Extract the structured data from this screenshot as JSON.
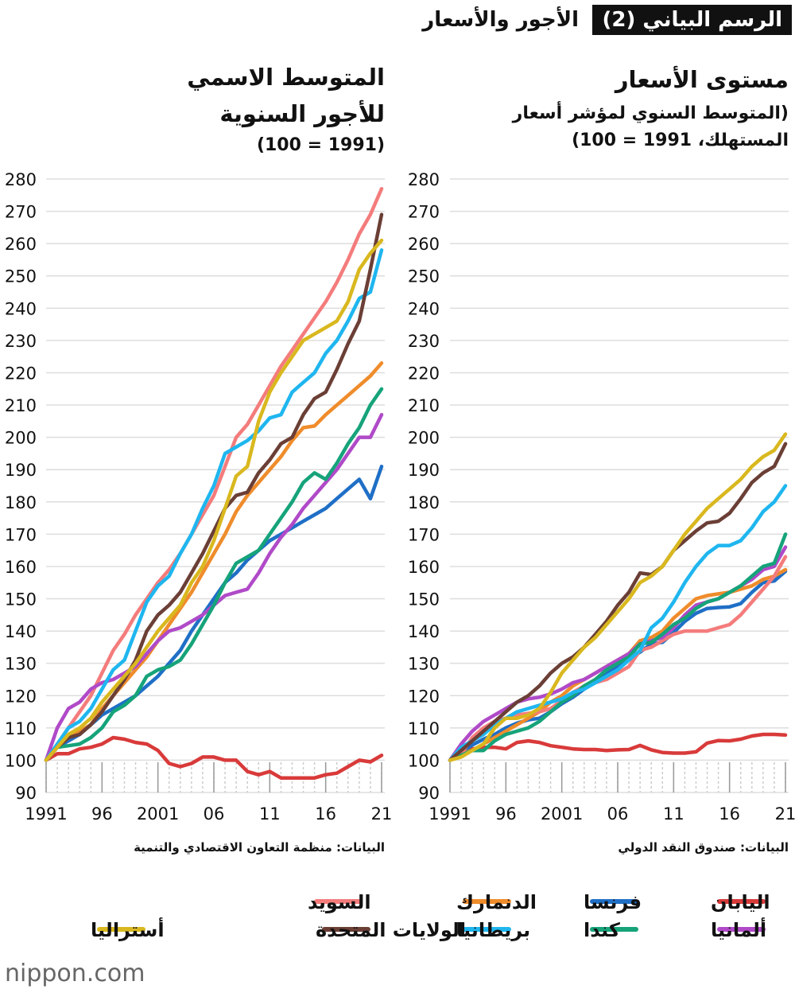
{
  "header": {
    "label": "الرسم البياني (2)",
    "title": "الأجور والأسعار"
  },
  "logo": "nippon.com",
  "chart_data": [
    {
      "type": "line",
      "title": "المتوسط الاسمي للأجور السنوية",
      "subtitle": "(1991 = 100)",
      "source": "البيانات: منظمة التعاون الاقتصادي والتنمية",
      "x": [
        1991,
        1992,
        1993,
        1994,
        1995,
        1996,
        1997,
        1998,
        1999,
        2000,
        2001,
        2002,
        2003,
        2004,
        2005,
        2006,
        2007,
        2008,
        2009,
        2010,
        2011,
        2012,
        2013,
        2014,
        2015,
        2016,
        2017,
        2018,
        2019,
        2020,
        2021
      ],
      "xlim": [
        1991,
        2021
      ],
      "xticks": [
        1991,
        {
          "value": 1996,
          "label": "96"
        },
        2001,
        {
          "value": 2006,
          "label": "06"
        },
        {
          "value": 2011,
          "label": "11"
        },
        {
          "value": 2016,
          "label": "16"
        },
        {
          "value": 2021,
          "label": "21"
        }
      ],
      "ylim": [
        90,
        280
      ],
      "yticks": [
        90,
        100,
        110,
        120,
        130,
        140,
        150,
        160,
        170,
        180,
        190,
        200,
        210,
        220,
        230,
        240,
        250,
        260,
        270,
        280
      ],
      "grid": true,
      "series": [
        {
          "name": "اليابان",
          "color": "#d93a3a",
          "values": [
            100,
            102,
            102,
            103.5,
            104,
            105,
            107,
            106.5,
            105.5,
            105,
            103,
            99,
            98,
            99,
            101,
            101,
            100,
            100,
            96.5,
            95.5,
            96.5,
            94.5,
            94.5,
            94.5,
            94.5,
            95.5,
            96,
            98,
            100,
            99.5,
            101.5
          ]
        },
        {
          "name": "فرنسا",
          "color": "#1f6fc6",
          "values": [
            100,
            104,
            106,
            108,
            111,
            114,
            116,
            118,
            120,
            123,
            126,
            130,
            134,
            140,
            145,
            150,
            155,
            158,
            162,
            165,
            168,
            170,
            172,
            174,
            176,
            178,
            181,
            184,
            187,
            181,
            191
          ]
        },
        {
          "name": "الدنمارك",
          "color": "#ef8c2b",
          "values": [
            100,
            104,
            107,
            109,
            111,
            116,
            120,
            124,
            128,
            132,
            137,
            142,
            147,
            152,
            158,
            164,
            170,
            177,
            182,
            186,
            190,
            194,
            199,
            203,
            203.5,
            207,
            210,
            213,
            216,
            219,
            223
          ]
        },
        {
          "name": "السويد",
          "color": "#f47c7c",
          "values": [
            100,
            105,
            110,
            115,
            120,
            127,
            134,
            139,
            145,
            150,
            155,
            159,
            164,
            170,
            176,
            182,
            191,
            200,
            204,
            210,
            216,
            222,
            227,
            232,
            237,
            242,
            248,
            255,
            263,
            269,
            277
          ]
        },
        {
          "name": "ألمانيا",
          "color": "#b04ac8",
          "values": [
            100,
            110,
            116,
            118,
            122,
            124,
            125,
            127,
            129,
            133,
            137,
            140,
            141,
            143,
            145,
            148,
            151,
            152,
            153,
            158,
            164,
            169,
            173,
            178,
            182,
            186,
            190,
            195,
            200,
            200,
            207
          ]
        },
        {
          "name": "كندا",
          "color": "#16a37a",
          "values": [
            100,
            104,
            104.5,
            105,
            107,
            110,
            115,
            117,
            120,
            126,
            128,
            129,
            131,
            136,
            142,
            148,
            155,
            161,
            163,
            165,
            170,
            175,
            180,
            186,
            189,
            187,
            192,
            198,
            203,
            210,
            215
          ]
        },
        {
          "name": "بريطانيا",
          "color": "#1fb6ef",
          "values": [
            100,
            105,
            110,
            112,
            116,
            122,
            128,
            131,
            140,
            149,
            154,
            157,
            164,
            170,
            178,
            185,
            195,
            197,
            199,
            202,
            206,
            207,
            214,
            217,
            220,
            226,
            230,
            236,
            243,
            245,
            258
          ]
        },
        {
          "name": "الولايات المتحدة",
          "color": "#6b3f36",
          "values": [
            100,
            104,
            107,
            108,
            111,
            115,
            120,
            125,
            131,
            140,
            145,
            148,
            152,
            158,
            164,
            171,
            178,
            182,
            183,
            189,
            193,
            198,
            200,
            207,
            212,
            214,
            221,
            229,
            236,
            252,
            269
          ]
        },
        {
          "name": "أستراليا",
          "color": "#d9b81f",
          "values": [
            100,
            104,
            108,
            110,
            113,
            118,
            122,
            126,
            130,
            135,
            140,
            144,
            148,
            155,
            160,
            168,
            178,
            188,
            191,
            205,
            214,
            220,
            225,
            230,
            232,
            234,
            236,
            242,
            252,
            257,
            261
          ]
        }
      ]
    },
    {
      "type": "line",
      "title": "مستوى الأسعار",
      "subtitle": "(المتوسط السنوي لمؤشر أسعار المستهلك، 1991 = 100)",
      "source": "البيانات: صندوق النقد الدولي",
      "x": [
        1991,
        1992,
        1993,
        1994,
        1995,
        1996,
        1997,
        1998,
        1999,
        2000,
        2001,
        2002,
        2003,
        2004,
        2005,
        2006,
        2007,
        2008,
        2009,
        2010,
        2011,
        2012,
        2013,
        2014,
        2015,
        2016,
        2017,
        2018,
        2019,
        2020,
        2021
      ],
      "xlim": [
        1991,
        2021
      ],
      "xticks": [
        1991,
        {
          "value": 1996,
          "label": "96"
        },
        2001,
        {
          "value": 2006,
          "label": "06"
        },
        {
          "value": 2011,
          "label": "11"
        },
        {
          "value": 2016,
          "label": "16"
        },
        {
          "value": 2021,
          "label": "21"
        }
      ],
      "ylim": [
        90,
        280
      ],
      "yticks": [
        90,
        100,
        110,
        120,
        130,
        140,
        150,
        160,
        170,
        180,
        190,
        200,
        210,
        220,
        230,
        240,
        250,
        260,
        270,
        280
      ],
      "grid": true,
      "series": [
        {
          "name": "اليابان",
          "color": "#d93a3a",
          "values": [
            100,
            102,
            103.5,
            104,
            104,
            103.5,
            105.5,
            106,
            105.5,
            104.5,
            104,
            103.5,
            103.3,
            103.3,
            103,
            103.2,
            103.3,
            104.6,
            103.2,
            102.4,
            102.2,
            102.2,
            102.6,
            105.3,
            106.1,
            106,
            106.5,
            107.5,
            108,
            108,
            107.8
          ]
        },
        {
          "name": "فرنسا",
          "color": "#1f6fc6",
          "values": [
            100,
            102.5,
            104.7,
            106.5,
            108,
            110,
            111.5,
            112.5,
            113,
            115,
            117.5,
            119.5,
            122,
            124.5,
            127,
            129,
            131,
            133.5,
            136,
            136.5,
            139.5,
            143,
            145.5,
            147,
            147.3,
            147.5,
            148.5,
            152,
            155,
            155.5,
            158.5
          ]
        },
        {
          "name": "الدنمارك",
          "color": "#ef8c2b",
          "values": [
            100,
            102,
            103,
            105,
            107,
            109,
            111,
            113,
            115,
            118,
            120,
            123,
            125,
            127,
            129,
            131,
            133,
            137,
            138,
            140,
            144,
            147,
            150,
            151,
            151.5,
            152,
            153,
            154,
            156,
            157,
            159
          ]
        },
        {
          "name": "السويد",
          "color": "#f47c7c",
          "values": [
            100,
            102,
            107,
            110,
            112,
            113,
            114,
            114.5,
            115,
            116,
            118.5,
            121,
            123,
            124,
            125,
            127,
            129,
            134,
            135,
            137,
            139,
            140,
            140,
            140,
            141,
            142,
            145,
            149,
            153,
            157,
            163
          ]
        },
        {
          "name": "ألمانيا",
          "color": "#b04ac8",
          "values": [
            100,
            105,
            109,
            112,
            114,
            116,
            118,
            119,
            119.5,
            120.5,
            122,
            124,
            125,
            127,
            129,
            131,
            133,
            136,
            137,
            138,
            141,
            145,
            148,
            149,
            150,
            152,
            154,
            156,
            159,
            160,
            166
          ]
        },
        {
          "name": "كندا",
          "color": "#16a37a",
          "values": [
            100,
            101.5,
            103,
            103,
            106,
            108,
            109,
            110,
            112,
            115,
            118,
            120,
            123,
            125,
            128,
            130,
            132,
            136,
            136.5,
            139,
            142,
            144,
            147,
            149,
            150,
            152,
            154,
            157,
            160,
            161,
            170
          ]
        },
        {
          "name": "بريطانيا",
          "color": "#1fb6ef",
          "values": [
            100,
            104,
            106,
            108,
            111,
            113,
            115,
            116,
            117,
            118,
            119,
            121,
            122,
            124,
            126,
            128,
            131,
            134,
            141,
            144,
            149,
            155,
            160,
            164,
            166.5,
            166.5,
            168,
            172,
            177,
            180,
            185
          ]
        },
        {
          "name": "الولايات المتحدة",
          "color": "#6b3f36",
          "values": [
            100,
            103,
            106,
            109,
            112,
            115,
            118,
            120,
            123,
            127,
            130,
            132,
            135,
            139,
            143,
            148,
            152,
            158,
            157.5,
            160,
            165,
            168,
            171,
            173.5,
            174,
            176.5,
            181,
            186,
            189,
            191,
            198
          ]
        },
        {
          "name": "أستراليا",
          "color": "#d9b81f",
          "values": [
            100,
            101,
            103,
            105,
            110,
            113,
            113,
            114,
            116,
            121,
            127,
            131,
            135,
            138,
            142,
            146,
            150,
            155,
            157,
            160,
            165,
            170,
            174,
            178,
            181,
            184,
            187,
            191,
            194,
            196,
            201
          ]
        }
      ]
    }
  ]
}
